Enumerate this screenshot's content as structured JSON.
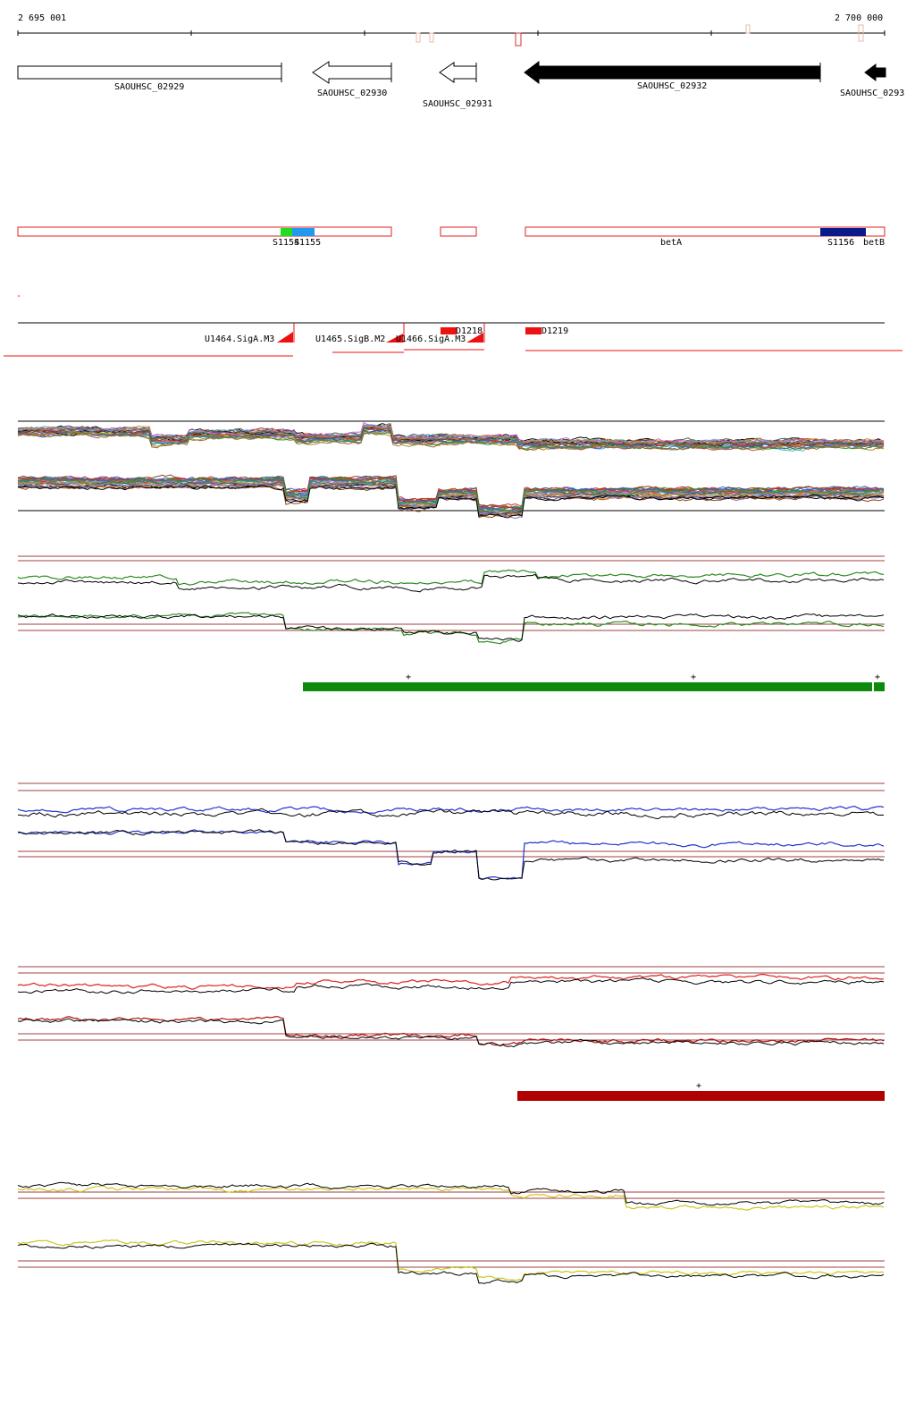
{
  "ruler": {
    "start_label": "2 695 001",
    "end_label": "2 700 000"
  },
  "genes": [
    {
      "id": "g1",
      "label": "SAOUHSC_02929",
      "style": "open",
      "direction": "none"
    },
    {
      "id": "g2",
      "label": "SAOUHSC_02930",
      "style": "open",
      "direction": "left"
    },
    {
      "id": "g3",
      "label": "SAOUHSC_02931",
      "style": "open",
      "direction": "left"
    },
    {
      "id": "g4",
      "label": "SAOUHSC_02932",
      "style": "filled",
      "direction": "left"
    },
    {
      "id": "g5",
      "label": "SAOUHSC_0293",
      "style": "filled",
      "direction": "left"
    }
  ],
  "segments": {
    "labels": [
      "S1154",
      "S1155",
      "betA",
      "S1156",
      "betB"
    ],
    "colors": {
      "border": "#e02020",
      "s1154": "#22dd22",
      "s1155": "#2299ee",
      "s1156": "#0a1a8a"
    }
  },
  "features": {
    "labels": [
      "U1464.SigA.M3",
      "U1465.SigB.M2",
      "U1466.SigA.M3",
      "D1218",
      "D1219"
    ],
    "color": "#ee1111"
  },
  "tracks": {
    "colors": {
      "green": "#2e8b22",
      "blue": "#2233cc",
      "red": "#dd2222",
      "yellow": "#c8c820",
      "ref": "#a04040"
    },
    "green_bar": {
      "color": "#0b8a0b",
      "marks": [
        "+",
        "+",
        "+"
      ]
    },
    "red_bar": {
      "color": "#b00000",
      "marks": [
        "+"
      ]
    }
  }
}
